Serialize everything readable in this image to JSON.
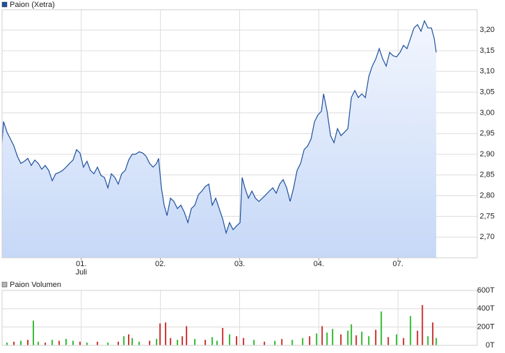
{
  "chart_data": [
    {
      "type": "area",
      "x": [
        0,
        0.018,
        0.062,
        0.105,
        0.149,
        0.193,
        0.237,
        0.281,
        0.325,
        0.369,
        0.413,
        0.457,
        0.501,
        0.545,
        0.589,
        0.633,
        0.677,
        0.721,
        0.765,
        0.808,
        0.852,
        0.896,
        0.94,
        0.984,
        1.028,
        1.072,
        1.116,
        1.16,
        1.204,
        1.248,
        1.292,
        1.336,
        1.38,
        1.424,
        1.467,
        1.511,
        1.555,
        1.599,
        1.643,
        1.687,
        1.731,
        1.775,
        1.819,
        1.863,
        1.907,
        1.951,
        1.977,
        2.012,
        2.047,
        2.083,
        2.127,
        2.17,
        2.214,
        2.258,
        2.302,
        2.346,
        2.39,
        2.434,
        2.478,
        2.522,
        2.566,
        2.61,
        2.654,
        2.698,
        2.742,
        2.786,
        2.83,
        2.873,
        2.917,
        2.961,
        3.005,
        3.032,
        3.067,
        3.111,
        3.155,
        3.199,
        3.243,
        3.286,
        3.33,
        3.374,
        3.418,
        3.462,
        3.506,
        3.55,
        3.594,
        3.638,
        3.682,
        3.726,
        3.77,
        3.814,
        3.858,
        3.902,
        3.946,
        3.989,
        4.033,
        4.06,
        4.104,
        4.148,
        4.192,
        4.236,
        4.279,
        4.323,
        4.367,
        4.411,
        4.455,
        4.499,
        4.543,
        4.587,
        4.631,
        4.675,
        4.719,
        4.763,
        4.807,
        4.851,
        4.895,
        4.938,
        4.982,
        5.026,
        5.07,
        5.114,
        5.158,
        5.202,
        5.246,
        5.29,
        5.334,
        5.378,
        5.422,
        5.457,
        5.483
      ],
      "series": [
        {
          "name": "Paion (Xetra)",
          "color": "#1c4f9c",
          "values": [
            2.928,
            2.979,
            2.953,
            2.937,
            2.92,
            2.895,
            2.878,
            2.883,
            2.89,
            2.873,
            2.886,
            2.878,
            2.864,
            2.873,
            2.861,
            2.836,
            2.853,
            2.856,
            2.861,
            2.869,
            2.878,
            2.886,
            2.911,
            2.903,
            2.869,
            2.883,
            2.861,
            2.853,
            2.869,
            2.849,
            2.844,
            2.819,
            2.853,
            2.844,
            2.828,
            2.853,
            2.861,
            2.886,
            2.9,
            2.9,
            2.906,
            2.903,
            2.895,
            2.878,
            2.869,
            2.878,
            2.89,
            2.819,
            2.777,
            2.752,
            2.794,
            2.786,
            2.769,
            2.777,
            2.76,
            2.735,
            2.769,
            2.777,
            2.802,
            2.811,
            2.822,
            2.828,
            2.777,
            2.794,
            2.769,
            2.744,
            2.71,
            2.735,
            2.718,
            2.727,
            2.735,
            2.844,
            2.819,
            2.794,
            2.811,
            2.794,
            2.786,
            2.794,
            2.802,
            2.811,
            2.819,
            2.806,
            2.828,
            2.839,
            2.819,
            2.786,
            2.819,
            2.861,
            2.878,
            2.911,
            2.92,
            2.937,
            2.979,
            2.995,
            3.004,
            3.046,
            3.004,
            2.945,
            2.928,
            2.962,
            2.945,
            2.953,
            2.962,
            3.037,
            3.054,
            3.037,
            3.046,
            3.037,
            3.088,
            3.113,
            3.13,
            3.155,
            3.13,
            3.113,
            3.146,
            3.138,
            3.135,
            3.146,
            3.163,
            3.155,
            3.18,
            3.205,
            3.213,
            3.197,
            3.222,
            3.205,
            3.205,
            3.18,
            3.146
          ]
        }
      ],
      "xlim": [
        0,
        6
      ],
      "xticks": [
        {
          "value": 1,
          "label": "01."
        },
        {
          "value": 2,
          "label": "02."
        },
        {
          "value": 3,
          "label": "03."
        },
        {
          "value": 4,
          "label": "04."
        },
        {
          "value": 5,
          "label": "07."
        }
      ],
      "x_month_label": "Juli",
      "ylim": [
        2.65,
        3.249
      ],
      "yticks": [
        {
          "value": 2.7,
          "label": "2,70"
        },
        {
          "value": 2.75,
          "label": "2,75"
        },
        {
          "value": 2.8,
          "label": "2,80"
        },
        {
          "value": 2.85,
          "label": "2,85"
        },
        {
          "value": 2.9,
          "label": "2,90"
        },
        {
          "value": 2.95,
          "label": "2,95"
        },
        {
          "value": 3.0,
          "label": "3,00"
        },
        {
          "value": 3.05,
          "label": "3,05"
        },
        {
          "value": 3.1,
          "label": "3,10"
        },
        {
          "value": 3.15,
          "label": "3,15"
        },
        {
          "value": 3.2,
          "label": "3,20"
        }
      ],
      "grid": true
    },
    {
      "type": "bar",
      "series": [
        {
          "name": "Paion Volumen",
          "color": "#b4b4b4"
        }
      ],
      "x": [
        0.062,
        0.149,
        0.237,
        0.325,
        0.395,
        0.457,
        0.545,
        0.633,
        0.721,
        0.808,
        0.896,
        0.984,
        1.072,
        1.204,
        1.336,
        1.467,
        1.538,
        1.599,
        1.643,
        1.731,
        1.863,
        1.951,
        1.995,
        2.065,
        2.127,
        2.214,
        2.276,
        2.329,
        2.434,
        2.566,
        2.654,
        2.715,
        2.786,
        2.873,
        2.961,
        3.049,
        3.181,
        3.313,
        3.445,
        3.533,
        3.665,
        3.796,
        3.884,
        3.972,
        4.042,
        4.104,
        4.174,
        4.279,
        4.367,
        4.411,
        4.473,
        4.543,
        4.631,
        4.719,
        4.789,
        4.877,
        4.982,
        5.07,
        5.158,
        5.246,
        5.308,
        5.378,
        5.439,
        5.483
      ],
      "values": [
        30,
        40,
        50,
        60,
        270,
        40,
        30,
        60,
        50,
        70,
        50,
        40,
        30,
        40,
        30,
        40,
        100,
        120,
        80,
        40,
        50,
        70,
        240,
        250,
        80,
        60,
        100,
        210,
        70,
        60,
        90,
        50,
        190,
        120,
        100,
        80,
        60,
        40,
        50,
        70,
        60,
        80,
        100,
        130,
        210,
        140,
        180,
        120,
        160,
        230,
        110,
        150,
        100,
        170,
        370,
        90,
        120,
        80,
        320,
        160,
        440,
        100,
        250,
        80
      ],
      "colors": [
        "#33bb33",
        "#cc3333",
        "#33bb33",
        "#cc3333",
        "#33bb33",
        "#33bb33",
        "#cc3333",
        "#33bb33",
        "#cc3333",
        "#33bb33",
        "#33bb33",
        "#cc3333",
        "#33bb33",
        "#cc3333",
        "#33bb33",
        "#cc3333",
        "#33bb33",
        "#cc3333",
        "#33bb33",
        "#33bb33",
        "#cc3333",
        "#33bb33",
        "#cc3333",
        "#cc3333",
        "#cc3333",
        "#33bb33",
        "#cc3333",
        "#cc3333",
        "#33bb33",
        "#cc3333",
        "#33bb33",
        "#33bb33",
        "#cc3333",
        "#33bb33",
        "#cc3333",
        "#cc3333",
        "#33bb33",
        "#cc3333",
        "#33bb33",
        "#cc3333",
        "#33bb33",
        "#33bb33",
        "#cc3333",
        "#33bb33",
        "#cc3333",
        "#33bb33",
        "#33bb33",
        "#cc3333",
        "#33bb33",
        "#33bb33",
        "#cc3333",
        "#33bb33",
        "#33bb33",
        "#cc3333",
        "#33bb33",
        "#cc3333",
        "#33bb33",
        "#cc3333",
        "#33bb33",
        "#cc3333",
        "#cc3333",
        "#33bb33",
        "#cc3333",
        "#33bb33"
      ],
      "xlim": [
        0,
        6
      ],
      "ylim": [
        0,
        600
      ],
      "yticks": [
        {
          "value": 0,
          "label": "0T"
        },
        {
          "value": 200,
          "label": "200T"
        },
        {
          "value": 400,
          "label": "400T"
        },
        {
          "value": 600,
          "label": "600T"
        }
      ],
      "grid": true
    }
  ]
}
